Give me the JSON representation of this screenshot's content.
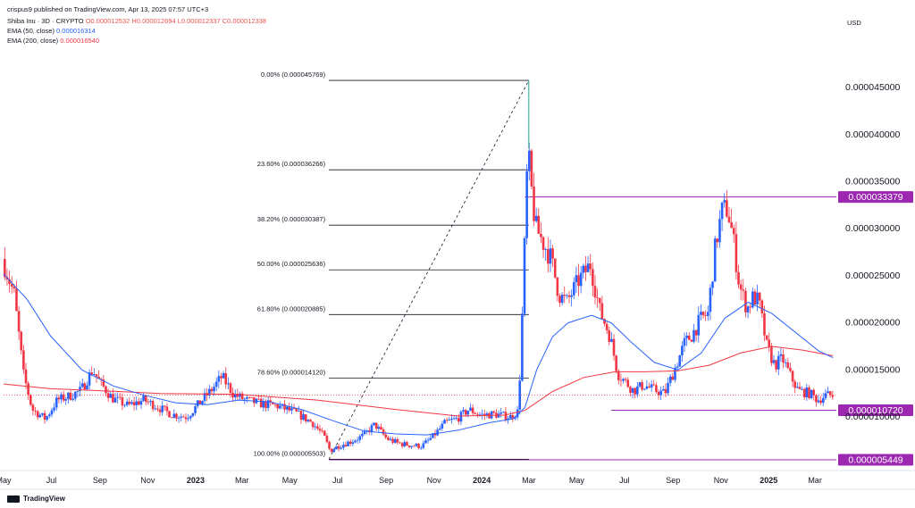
{
  "header": {
    "publisher": "crispus9 published on TradingView.com, Apr 13, 2025 07:57 UTC+3",
    "symbol": "Shiba Inu · 3D · CRYPTO",
    "ohlc": "O0.000012532 H0.000012694 L0.000012337 C0.000012338",
    "ema50_label": "EMA (50, close)",
    "ema50_value": "0.000016314",
    "ema200_label": "EMA (200, close)",
    "ema200_value": "0.000016540",
    "currency": "USD"
  },
  "footer": {
    "brand": "TradingView"
  },
  "colors": {
    "up": "#089981",
    "upBody": "#2962ff",
    "down": "#f23645",
    "ema50": "#2962ff",
    "ema200": "#f23645",
    "level": "#9c27b0",
    "fib": "#131722"
  },
  "chart_data": {
    "type": "candlestick",
    "ylim": [
      4.5e-06,
      4.9e-05
    ],
    "yticks": [
      "0.000045000",
      "0.000040000",
      "0.000035000",
      "0.000030000",
      "0.000025000",
      "0.000020000",
      "0.000015000",
      "0.000010000"
    ],
    "ytick_values": [
      4.5e-05,
      4e-05,
      3.5e-05,
      3e-05,
      2.5e-05,
      2e-05,
      1.5e-05,
      1e-05
    ],
    "xticks": [
      {
        "label": "May",
        "t": 0,
        "bold": false
      },
      {
        "label": "Jul",
        "t": 61,
        "bold": false
      },
      {
        "label": "Sep",
        "t": 123,
        "bold": false
      },
      {
        "label": "Nov",
        "t": 184,
        "bold": false
      },
      {
        "label": "2023",
        "t": 245,
        "bold": true
      },
      {
        "label": "Mar",
        "t": 304,
        "bold": false
      },
      {
        "label": "May",
        "t": 365,
        "bold": false
      },
      {
        "label": "Jul",
        "t": 426,
        "bold": false
      },
      {
        "label": "Sep",
        "t": 488,
        "bold": false
      },
      {
        "label": "Nov",
        "t": 549,
        "bold": false
      },
      {
        "label": "2024",
        "t": 610,
        "bold": true
      },
      {
        "label": "Mar",
        "t": 670,
        "bold": false
      },
      {
        "label": "May",
        "t": 731,
        "bold": false
      },
      {
        "label": "Jul",
        "t": 792,
        "bold": false
      },
      {
        "label": "Sep",
        "t": 854,
        "bold": false
      },
      {
        "label": "Nov",
        "t": 915,
        "bold": false
      },
      {
        "label": "2025",
        "t": 976,
        "bold": true
      },
      {
        "label": "Mar",
        "t": 1035,
        "bold": false
      }
    ],
    "fib_levels": [
      {
        "label": "0.00% (0.000045769)",
        "value": 4.5769e-05
      },
      {
        "label": "23.60% (0.000036266)",
        "value": 3.6266e-05
      },
      {
        "label": "38.20% (0.000030387)",
        "value": 3.0387e-05
      },
      {
        "label": "50.00% (0.000025636)",
        "value": 2.5636e-05
      },
      {
        "label": "61.80% (0.000020885)",
        "value": 2.0885e-05
      },
      {
        "label": "78.60% (0.000014120)",
        "value": 1.412e-05
      },
      {
        "label": "100.00% (0.000005503)",
        "value": 5.503e-06
      }
    ],
    "fib_range": {
      "t_start": 415,
      "t_end": 670
    },
    "price_levels": [
      {
        "label": "0.000033379",
        "value": 3.3379e-05,
        "t_start": 665
      },
      {
        "label": "0.000010720",
        "value": 1.072e-05,
        "t_start": 775
      },
      {
        "label": "0.000005449",
        "value": 5.449e-06,
        "t_start": 415
      }
    ],
    "current_price": 1.2338e-05,
    "anchors": [
      [
        0,
        2.68e-05
      ],
      [
        15,
        2.3e-05
      ],
      [
        27,
        1.45e-05
      ],
      [
        38,
        1.08e-05
      ],
      [
        55,
        9.8e-06
      ],
      [
        70,
        1.18e-05
      ],
      [
        85,
        1.22e-05
      ],
      [
        100,
        1.28e-05
      ],
      [
        115,
        1.5e-05
      ],
      [
        125,
        1.36e-05
      ],
      [
        140,
        1.2e-05
      ],
      [
        160,
        1.12e-05
      ],
      [
        180,
        1.18e-05
      ],
      [
        195,
        1.12e-05
      ],
      [
        215,
        1.03e-05
      ],
      [
        235,
        1e-05
      ],
      [
        255,
        1.18e-05
      ],
      [
        268,
        1.3e-05
      ],
      [
        280,
        1.43e-05
      ],
      [
        295,
        1.24e-05
      ],
      [
        310,
        1.18e-05
      ],
      [
        330,
        1.14e-05
      ],
      [
        350,
        1.12e-05
      ],
      [
        375,
        1.04e-05
      ],
      [
        395,
        9.4e-06
      ],
      [
        410,
        8e-06
      ],
      [
        418,
        6.4e-06
      ],
      [
        428,
        6.9e-06
      ],
      [
        445,
        7.4e-06
      ],
      [
        460,
        8e-06
      ],
      [
        475,
        9.2e-06
      ],
      [
        490,
        7.7e-06
      ],
      [
        505,
        7.2e-06
      ],
      [
        520,
        7e-06
      ],
      [
        535,
        6.9e-06
      ],
      [
        550,
        8e-06
      ],
      [
        565,
        9.4e-06
      ],
      [
        580,
        9.8e-06
      ],
      [
        595,
        1.08e-05
      ],
      [
        610,
        1.02e-05
      ],
      [
        628,
        1.03e-05
      ],
      [
        648,
        1e-05
      ],
      [
        658,
        1.06e-05
      ],
      [
        662,
        1.8e-05
      ],
      [
        666,
        2.9e-05
      ],
      [
        670,
        3.85e-05
      ],
      [
        675,
        3.4e-05
      ],
      [
        680,
        3.02e-05
      ],
      [
        690,
        2.85e-05
      ],
      [
        700,
        2.68e-05
      ],
      [
        710,
        2.3e-05
      ],
      [
        720,
        2.22e-05
      ],
      [
        735,
        2.45e-05
      ],
      [
        750,
        2.62e-05
      ],
      [
        762,
        2.13e-05
      ],
      [
        775,
        1.86e-05
      ],
      [
        785,
        1.46e-05
      ],
      [
        795,
        1.37e-05
      ],
      [
        805,
        1.28e-05
      ],
      [
        818,
        1.34e-05
      ],
      [
        830,
        1.29e-05
      ],
      [
        845,
        1.25e-05
      ],
      [
        858,
        1.52e-05
      ],
      [
        870,
        1.78e-05
      ],
      [
        880,
        1.88e-05
      ],
      [
        890,
        2.03e-05
      ],
      [
        900,
        2.1e-05
      ],
      [
        910,
        2.85e-05
      ],
      [
        918,
        3.18e-05
      ],
      [
        925,
        3.22e-05
      ],
      [
        932,
        2.9e-05
      ],
      [
        940,
        2.4e-05
      ],
      [
        950,
        2.15e-05
      ],
      [
        958,
        2.28e-05
      ],
      [
        965,
        2.22e-05
      ],
      [
        975,
        1.75e-05
      ],
      [
        985,
        1.55e-05
      ],
      [
        995,
        1.62e-05
      ],
      [
        1005,
        1.44e-05
      ],
      [
        1015,
        1.28e-05
      ],
      [
        1030,
        1.25e-05
      ],
      [
        1040,
        1.18e-05
      ],
      [
        1050,
        1.23e-05
      ],
      [
        1058,
        1.23e-05
      ]
    ],
    "ema50": [
      [
        0,
        2.52e-05
      ],
      [
        30,
        2.25e-05
      ],
      [
        60,
        1.86e-05
      ],
      [
        100,
        1.5e-05
      ],
      [
        140,
        1.33e-05
      ],
      [
        180,
        1.23e-05
      ],
      [
        220,
        1.15e-05
      ],
      [
        260,
        1.13e-05
      ],
      [
        300,
        1.18e-05
      ],
      [
        340,
        1.16e-05
      ],
      [
        380,
        1.08e-05
      ],
      [
        420,
        9.6e-06
      ],
      [
        460,
        8.5e-06
      ],
      [
        500,
        8.2e-06
      ],
      [
        540,
        8.1e-06
      ],
      [
        580,
        8.6e-06
      ],
      [
        620,
        9.4e-06
      ],
      [
        650,
        9.8e-06
      ],
      [
        665,
        1.1e-05
      ],
      [
        680,
        1.5e-05
      ],
      [
        700,
        1.85e-05
      ],
      [
        720,
        2e-05
      ],
      [
        750,
        2.08e-05
      ],
      [
        775,
        2e-05
      ],
      [
        800,
        1.8e-05
      ],
      [
        830,
        1.58e-05
      ],
      [
        860,
        1.5e-05
      ],
      [
        890,
        1.68e-05
      ],
      [
        920,
        2.05e-05
      ],
      [
        950,
        2.22e-05
      ],
      [
        980,
        2.1e-05
      ],
      [
        1010,
        1.9e-05
      ],
      [
        1040,
        1.7e-05
      ],
      [
        1058,
        1.63e-05
      ]
    ],
    "ema200": [
      [
        0,
        1.35e-05
      ],
      [
        60,
        1.3e-05
      ],
      [
        120,
        1.28e-05
      ],
      [
        200,
        1.25e-05
      ],
      [
        300,
        1.24e-05
      ],
      [
        400,
        1.18e-05
      ],
      [
        500,
        1.08e-05
      ],
      [
        580,
        1.01e-05
      ],
      [
        640,
        1.02e-05
      ],
      [
        665,
        1.07e-05
      ],
      [
        700,
        1.27e-05
      ],
      [
        740,
        1.42e-05
      ],
      [
        780,
        1.48e-05
      ],
      [
        820,
        1.48e-05
      ],
      [
        860,
        1.49e-05
      ],
      [
        900,
        1.55e-05
      ],
      [
        940,
        1.68e-05
      ],
      [
        980,
        1.75e-05
      ],
      [
        1020,
        1.71e-05
      ],
      [
        1058,
        1.65e-05
      ]
    ]
  }
}
